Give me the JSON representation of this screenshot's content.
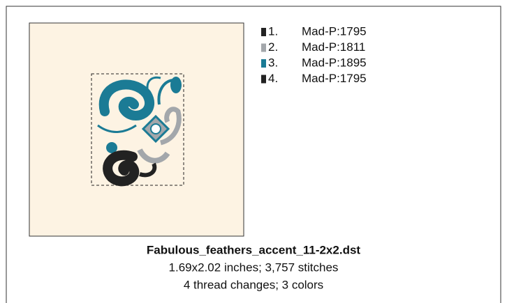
{
  "design": {
    "file_name": "Fabulous_feathers_accent_11-2x2.dst",
    "dimensions": "1.69x2.02 inches; 3,757 stitches",
    "summary": "4 thread changes; 3 colors",
    "threads": [
      {
        "number": "1.",
        "name": "Mad-P:1795",
        "color": "#222222"
      },
      {
        "number": "2.",
        "name": "Mad-P:1811",
        "color": "#a3a7ab"
      },
      {
        "number": "3.",
        "name": "Mad-P:1895",
        "color": "#1b7b95"
      },
      {
        "number": "4.",
        "name": "Mad-P:1795",
        "color": "#222222"
      }
    ]
  }
}
